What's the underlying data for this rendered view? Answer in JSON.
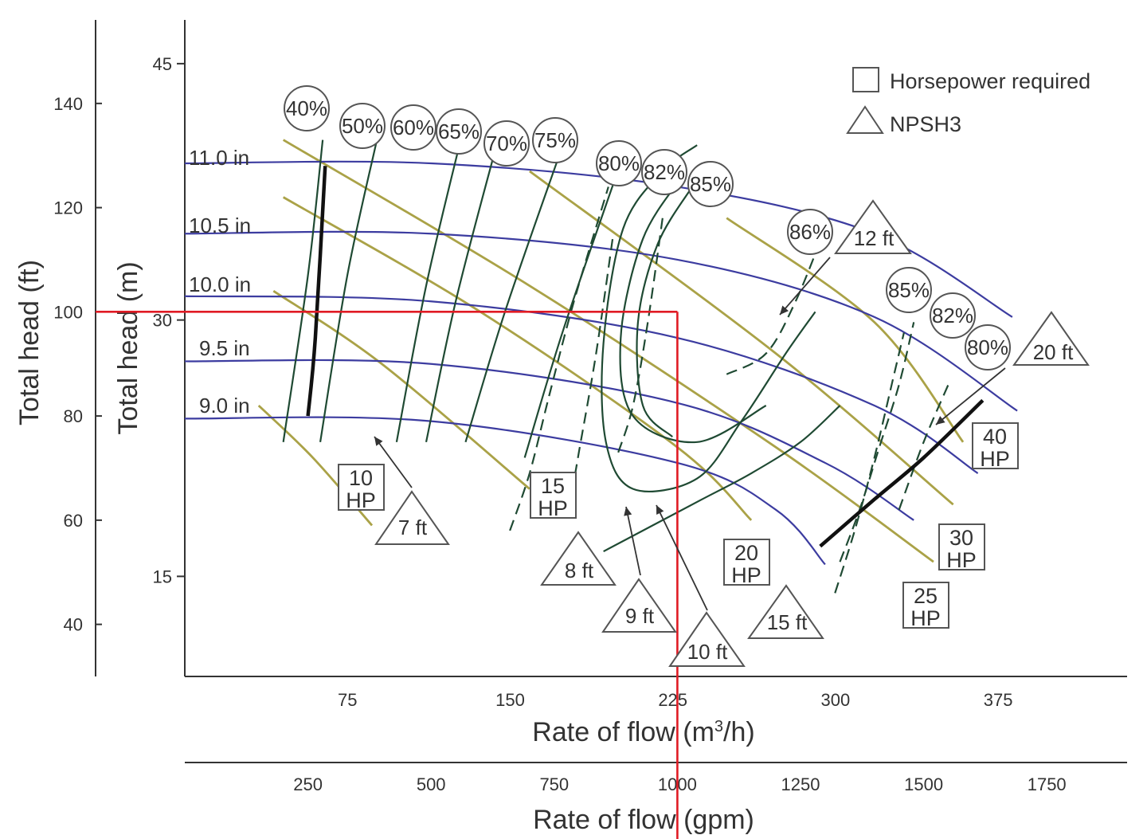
{
  "chart_data": {
    "type": "line",
    "title": "",
    "y_axis_ft": {
      "label": "Total head (ft)",
      "ticks": [
        40,
        60,
        80,
        100,
        120,
        140
      ]
    },
    "y_axis_m": {
      "label": "Total head (m)",
      "ticks": [
        15,
        30,
        45
      ]
    },
    "x_axis_m3h": {
      "label": "Rate of flow (m³/h)",
      "label_main": "Rate of flow (m",
      "label_sup": "3",
      "label_end": "/h)",
      "ticks": [
        75,
        150,
        225,
        300,
        375
      ]
    },
    "x_axis_gpm": {
      "label": "Rate of flow (gpm)",
      "ticks": [
        250,
        500,
        750,
        1000,
        1250,
        1500,
        1750
      ]
    },
    "xlim_gpm": [
      0,
      1880
    ],
    "ylim_ft": [
      30,
      150
    ],
    "legend": {
      "placement": "top-right",
      "items": [
        {
          "symbol": "square",
          "label": "Horsepower required"
        },
        {
          "symbol": "triangle",
          "label": "NPSH3"
        }
      ]
    },
    "impeller_curves": [
      {
        "label": "11.0 in",
        "points": [
          [
            0,
            128.5
          ],
          [
            500,
            128.5
          ],
          [
            1000,
            124
          ],
          [
            1400,
            115
          ],
          [
            1680,
            99
          ]
        ]
      },
      {
        "label": "10.5 in",
        "points": [
          [
            0,
            115
          ],
          [
            500,
            115
          ],
          [
            1000,
            110
          ],
          [
            1400,
            99
          ],
          [
            1690,
            81
          ]
        ]
      },
      {
        "label": "10.0 in",
        "points": [
          [
            0,
            103
          ],
          [
            500,
            102
          ],
          [
            1000,
            95
          ],
          [
            1400,
            82
          ],
          [
            1610,
            69
          ]
        ]
      },
      {
        "label": "9.5 in",
        "points": [
          [
            0,
            90.5
          ],
          [
            500,
            90
          ],
          [
            1000,
            82.5
          ],
          [
            1300,
            71
          ],
          [
            1480,
            60
          ]
        ]
      },
      {
        "label": "9.0 in",
        "points": [
          [
            0,
            79.5
          ],
          [
            500,
            79
          ],
          [
            1000,
            71
          ],
          [
            1200,
            62
          ],
          [
            1300,
            51.5
          ]
        ]
      }
    ],
    "efficiency_labels": [
      "40%",
      "50%",
      "60%",
      "65%",
      "70%",
      "75%",
      "80%",
      "82%",
      "85%",
      "86%",
      "85%",
      "82%",
      "80%"
    ],
    "efficiency_lines": [
      {
        "label": "40%",
        "points": [
          [
            200,
            75
          ],
          [
            250,
            107
          ],
          [
            280,
            133
          ]
        ]
      },
      {
        "label": "50%",
        "points": [
          [
            275,
            75
          ],
          [
            330,
            107
          ],
          [
            390,
            133
          ]
        ]
      },
      {
        "label": "60%",
        "points": [
          [
            430,
            75
          ],
          [
            490,
            105
          ],
          [
            560,
            133
          ]
        ]
      },
      {
        "label": "65%",
        "points": [
          [
            490,
            75
          ],
          [
            550,
            102
          ],
          [
            630,
            131
          ]
        ]
      },
      {
        "label": "70%",
        "points": [
          [
            570,
            75
          ],
          [
            650,
            100
          ],
          [
            760,
            130
          ]
        ]
      },
      {
        "label": "75%",
        "points": [
          [
            690,
            72
          ],
          [
            770,
            97
          ],
          [
            890,
            130
          ]
        ]
      },
      {
        "label": "80%",
        "points": [
          [
            990,
            76
          ],
          [
            930,
            82
          ],
          [
            920,
            98
          ],
          [
            960,
            113
          ],
          [
            1030,
            124
          ]
        ]
      },
      {
        "label": "82%",
        "points": [
          [
            1180,
            82
          ],
          [
            1040,
            75
          ],
          [
            910,
            80
          ],
          [
            885,
            95
          ],
          [
            930,
            114
          ],
          [
            1010,
            126
          ]
        ]
      },
      {
        "label": "85%",
        "points": [
          [
            1280,
            100
          ],
          [
            1220,
            92
          ],
          [
            1130,
            79
          ],
          [
            1040,
            68
          ],
          [
            910,
            66
          ],
          [
            855,
            75
          ],
          [
            850,
            94
          ],
          [
            890,
            116
          ],
          [
            970,
            127
          ],
          [
            1040,
            132
          ]
        ]
      },
      {
        "label": "85%",
        "points": [
          [
            1330,
            82
          ],
          [
            1250,
            75
          ],
          [
            1150,
            69
          ],
          [
            1050,
            64
          ],
          [
            950,
            59
          ],
          [
            850,
            54
          ]
        ]
      }
    ],
    "npsh3_labels": [
      "7 ft",
      "8 ft",
      "9 ft",
      "10 ft",
      "12 ft",
      "15 ft",
      "20 ft"
    ],
    "npsh3_lines": [
      {
        "label": "7 ft",
        "points": [
          [
            1100,
            88
          ],
          [
            1180,
            92
          ],
          [
            1240,
            102
          ],
          [
            1300,
            116
          ]
        ]
      },
      {
        "label": "8 ft",
        "points": [
          [
            880,
            73
          ],
          [
            910,
            82
          ],
          [
            940,
            98
          ],
          [
            970,
            118
          ]
        ]
      },
      {
        "label": "9 ft",
        "points": [
          [
            780,
            62
          ],
          [
            800,
            73
          ],
          [
            835,
            92
          ],
          [
            870,
            115
          ]
        ]
      },
      {
        "label": "10 ft",
        "points": [
          [
            660,
            58
          ],
          [
            700,
            69
          ],
          [
            740,
            84
          ],
          [
            790,
            102
          ],
          [
            860,
            124
          ]
        ]
      },
      {
        "label": "12 ft",
        "points": [
          [
            1330,
            52
          ],
          [
            1370,
            62
          ],
          [
            1410,
            74
          ],
          [
            1450,
            86
          ],
          [
            1480,
            98
          ]
        ]
      },
      {
        "label": "15 ft",
        "points": [
          [
            1320,
            46
          ],
          [
            1360,
            58
          ],
          [
            1400,
            72
          ],
          [
            1440,
            88
          ],
          [
            1460,
            96
          ]
        ]
      },
      {
        "label": "20 ft",
        "points": [
          [
            1450,
            62
          ],
          [
            1500,
            75
          ],
          [
            1550,
            86
          ]
        ]
      }
    ],
    "horsepower_labels": [
      "10 HP",
      "15 HP",
      "20 HP",
      "25 HP",
      "30 HP",
      "40 HP"
    ],
    "horsepower_lines": [
      {
        "label": "10 HP",
        "points": [
          [
            150,
            82
          ],
          [
            260,
            72
          ],
          [
            380,
            59
          ]
        ]
      },
      {
        "label": "15 HP",
        "points": [
          [
            180,
            104
          ],
          [
            400,
            90
          ],
          [
            700,
            66
          ]
        ]
      },
      {
        "label": "20 HP",
        "points": [
          [
            200,
            122
          ],
          [
            600,
            100
          ],
          [
            1000,
            74
          ],
          [
            1150,
            60
          ]
        ]
      },
      {
        "label": "25 HP",
        "points": [
          [
            200,
            133
          ],
          [
            700,
            105
          ],
          [
            1200,
            74
          ],
          [
            1520,
            52
          ]
        ]
      },
      {
        "label": "30 HP",
        "points": [
          [
            700,
            127
          ],
          [
            1200,
            92
          ],
          [
            1560,
            63
          ]
        ]
      },
      {
        "label": "40 HP",
        "points": [
          [
            1100,
            118
          ],
          [
            1400,
            98
          ],
          [
            1580,
            75
          ]
        ]
      }
    ],
    "limit_curves": [
      {
        "points": [
          [
            250,
            80
          ],
          [
            265,
            95
          ],
          [
            285,
            128
          ]
        ]
      },
      {
        "points": [
          [
            1290,
            55
          ],
          [
            1400,
            64
          ],
          [
            1500,
            72
          ],
          [
            1620,
            83
          ]
        ]
      }
    ],
    "operating_point": {
      "flow_gpm": 1000,
      "flow_m3h": 225,
      "head_ft": 100
    }
  }
}
